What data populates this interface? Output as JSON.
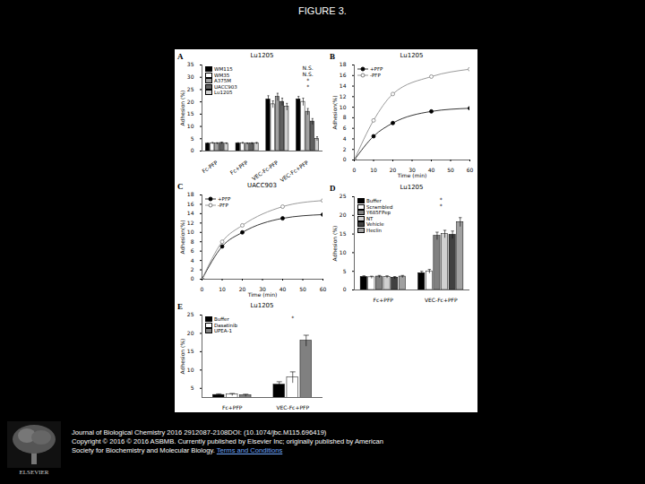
{
  "page": {
    "title": "FIGURE 3.",
    "publisher": "ELSEVIER",
    "citation": [
      "Journal of Biological Chemistry 2016 2912087-2108DOI: (10.1074/jbc.M115.696419)",
      "Copyright © 2016 © 2016 ASBMB. Currently published by Elsevier Inc; originally published by American",
      "Society for Biochemistry and Molecular Biology."
    ],
    "link": "Terms and Conditions"
  },
  "chart_data": [
    {
      "panel": "A",
      "type": "bar",
      "title": "Lu1205",
      "y_label": "Adhesion (%)",
      "categories": [
        "Fc-PFP",
        "Fc+PFP",
        "VEC-Fc-PFP",
        "VEC-Fc+PFP"
      ],
      "series": [
        {
          "name": "WM115",
          "color": "#000000",
          "values": [
            3.0,
            3.1,
            21,
            21
          ],
          "errors": [
            0.3,
            0.3,
            1.5,
            1.2
          ]
        },
        {
          "name": "WM35",
          "color": "#ffffff",
          "values": [
            3.2,
            3.2,
            19,
            20
          ],
          "errors": [
            0.3,
            0.3,
            1.4,
            1.5
          ]
        },
        {
          "name": "A375M",
          "color": "#a0a0a0",
          "values": [
            3.1,
            3.0,
            22,
            16
          ],
          "errors": [
            0.3,
            0.3,
            1.5,
            1.3
          ]
        },
        {
          "name": "UACC903",
          "color": "#606060",
          "values": [
            3.3,
            3.1,
            20,
            12
          ],
          "errors": [
            0.3,
            0.3,
            1.5,
            1.2
          ]
        },
        {
          "name": "Lu1205",
          "color": "#d0d0d0",
          "values": [
            3.0,
            3.2,
            18,
            5
          ],
          "errors": [
            0.3,
            0.3,
            1.4,
            0.8
          ]
        }
      ],
      "ylim": [
        0,
        35
      ],
      "yticks": [
        0,
        5,
        10,
        15,
        20,
        25,
        30,
        35
      ],
      "legend": "top-left",
      "annotations": [
        "N.S.",
        "N.S.",
        "*",
        "*"
      ]
    },
    {
      "panel": "B",
      "type": "line",
      "title": "Lu1205",
      "x_label": "Time (min)",
      "y_label": "Adhesion(%)",
      "x": [
        0,
        10,
        20,
        40,
        60
      ],
      "series": [
        {
          "name": "+PFP",
          "color": "#000000",
          "marker": "circle",
          "values": [
            0,
            4.5,
            7,
            9.2,
            9.8
          ]
        },
        {
          "name": "-PFP",
          "color": "#808080",
          "marker": "open-circle",
          "values": [
            0,
            7.5,
            12.5,
            15.8,
            17.2
          ]
        }
      ],
      "xlim": [
        0,
        60
      ],
      "xticks": [
        0,
        10,
        20,
        30,
        40,
        50,
        60
      ],
      "ylim": [
        0,
        18
      ],
      "yticks": [
        0,
        2,
        4,
        6,
        8,
        10,
        12,
        14,
        16,
        18
      ],
      "legend": "top-left"
    },
    {
      "panel": "C",
      "type": "line",
      "title": "UACC903",
      "x_label": "Time (min)",
      "y_label": "Adhesion(%)",
      "x": [
        0,
        10,
        20,
        40,
        60
      ],
      "series": [
        {
          "name": "+PFP",
          "color": "#000000",
          "marker": "circle",
          "values": [
            0,
            7,
            10,
            13,
            13.8
          ]
        },
        {
          "name": "-PFP",
          "color": "#808080",
          "marker": "open-circle",
          "values": [
            0,
            8,
            11.5,
            15.5,
            16.8
          ]
        }
      ],
      "xlim": [
        0,
        60
      ],
      "xticks": [
        0,
        10,
        20,
        30,
        40,
        50,
        60
      ],
      "ylim": [
        0,
        18
      ],
      "yticks": [
        0,
        2,
        4,
        6,
        8,
        10,
        12,
        14,
        16,
        18
      ],
      "legend": "top-left"
    },
    {
      "panel": "D",
      "type": "bar",
      "title": "Lu1205",
      "y_label": "Adhesion (%)",
      "categories": [
        "Fc+PFP",
        "VEC-Fc+PFP"
      ],
      "series": [
        {
          "name": "Buffer",
          "color": "#000000",
          "values": [
            3.5,
            4.5
          ],
          "errors": [
            0.3,
            0.5
          ]
        },
        {
          "name": "Scrambled",
          "color": "#ffffff",
          "values": [
            3.4,
            5.0
          ],
          "errors": [
            0.3,
            0.5
          ]
        },
        {
          "name": "Y685FPep",
          "color": "#808080",
          "values": [
            3.6,
            14.5
          ],
          "errors": [
            0.3,
            1.0
          ]
        },
        {
          "name": "NT",
          "color": "#d0d0d0",
          "values": [
            3.5,
            15.0
          ],
          "errors": [
            0.3,
            1.0
          ]
        },
        {
          "name": "Vehicle",
          "color": "#404040",
          "values": [
            3.3,
            14.8
          ],
          "errors": [
            0.3,
            1.0
          ]
        },
        {
          "name": "Heclin",
          "color": "#a0a0a0",
          "values": [
            3.6,
            18.2
          ],
          "errors": [
            0.3,
            1.2
          ]
        }
      ],
      "ylim": [
        0,
        25
      ],
      "yticks": [
        0,
        5,
        10,
        15,
        20,
        25
      ],
      "legend": "top-left",
      "annotations": [
        "*",
        "*"
      ]
    },
    {
      "panel": "E",
      "type": "bar",
      "title": "Lu1205",
      "y_label": "Adhesion (%)",
      "categories": [
        "Fc+PFP",
        "VEC-Fc+PFP"
      ],
      "series": [
        {
          "name": "Buffer",
          "color": "#000000",
          "values": [
            3.2,
            6
          ],
          "errors": [
            0.3,
            0.8
          ]
        },
        {
          "name": "Dasatinib",
          "color": "#ffffff",
          "values": [
            3.3,
            8
          ],
          "errors": [
            0.3,
            1.5
          ]
        },
        {
          "name": "UPEA-1",
          "color": "#808080",
          "values": [
            3.1,
            18
          ],
          "errors": [
            0.3,
            1.5
          ]
        }
      ],
      "ylim": [
        2.5,
        25
      ],
      "yticks": [
        5,
        10,
        15,
        20,
        25
      ],
      "legend": "top-left",
      "annotations": [
        "*"
      ]
    }
  ]
}
